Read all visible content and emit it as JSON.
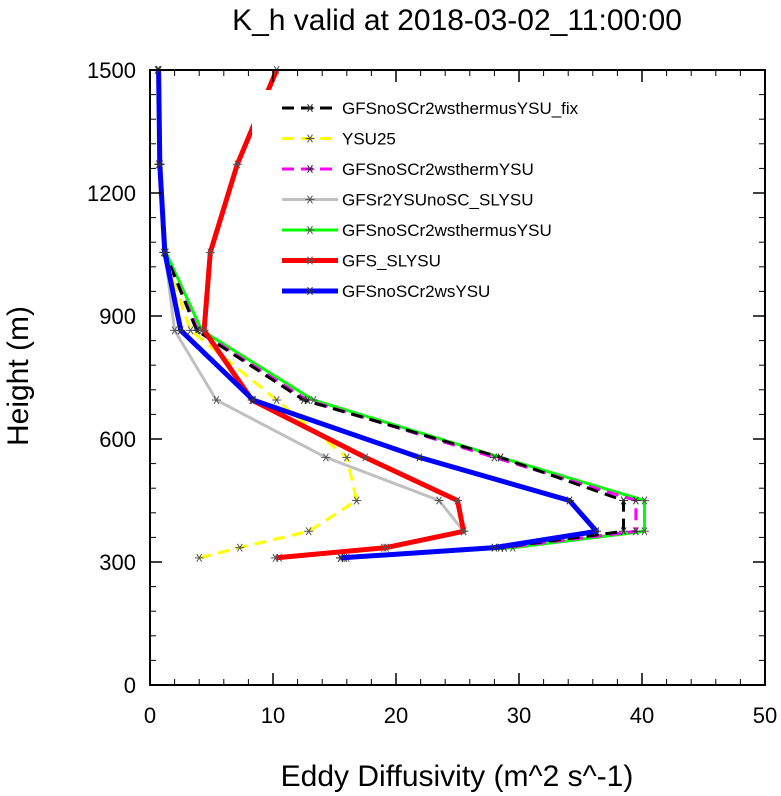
{
  "chart_data": {
    "type": "line",
    "title": "K_h valid at 2018-03-02_11:00:00",
    "xlabel": "Eddy Diffusivity (m^2 s^-1)",
    "ylabel": "Height (m)",
    "xlim": [
      0,
      50
    ],
    "ylim": [
      0,
      1500
    ],
    "xticks": [
      "0",
      "10",
      "20",
      "30",
      "40",
      "50"
    ],
    "yticks": [
      "0",
      "300",
      "600",
      "900",
      "1200",
      "1500"
    ],
    "grid": false,
    "legend_position": "top-right",
    "series": [
      {
        "name": "GFSnoSCr2wsthermusYSU_fix",
        "color": "#000000",
        "dash": true,
        "points": [
          [
            15.5,
            310
          ],
          [
            28.5,
            335
          ],
          [
            38.5,
            375
          ],
          [
            38.5,
            450
          ],
          [
            28.5,
            555
          ],
          [
            12.5,
            695
          ],
          [
            3.8,
            865
          ],
          [
            1.2,
            1055
          ],
          [
            0.8,
            1270
          ],
          [
            0.7,
            1500
          ]
        ]
      },
      {
        "name": "YSU25",
        "color": "#ffff00",
        "dash": true,
        "points": [
          [
            4.0,
            310
          ],
          [
            7.3,
            335
          ],
          [
            12.9,
            375
          ],
          [
            16.8,
            450
          ],
          [
            16.0,
            555
          ],
          [
            10.3,
            695
          ],
          [
            3.3,
            865
          ],
          [
            1.1,
            1055
          ],
          [
            0.7,
            1270
          ],
          [
            0.6,
            1500
          ]
        ]
      },
      {
        "name": "GFSnoSCr2wsthermYSU",
        "color": "#ff00ff",
        "dash": true,
        "points": [
          [
            15.8,
            310
          ],
          [
            28.8,
            335
          ],
          [
            39.5,
            375
          ],
          [
            39.5,
            450
          ],
          [
            28.0,
            555
          ],
          [
            12.8,
            695
          ],
          [
            3.9,
            865
          ],
          [
            1.2,
            1055
          ],
          [
            0.8,
            1270
          ],
          [
            0.7,
            1500
          ]
        ]
      },
      {
        "name": "GFSr2YSUnoSC_SLYSU",
        "color": "#c0c0c0",
        "dash": false,
        "points": [
          [
            10.5,
            310
          ],
          [
            19.0,
            335
          ],
          [
            25.5,
            375
          ],
          [
            23.5,
            450
          ],
          [
            14.3,
            555
          ],
          [
            5.4,
            695
          ],
          [
            2.0,
            865
          ],
          [
            1.2,
            1055
          ],
          [
            0.8,
            1270
          ],
          [
            0.7,
            1500
          ]
        ]
      },
      {
        "name": "GFSnoSCr2wsthermusYSU",
        "color": "#00ff00",
        "dash": false,
        "points": [
          [
            16.0,
            310
          ],
          [
            29.5,
            335
          ],
          [
            40.2,
            375
          ],
          [
            40.2,
            450
          ],
          [
            28.5,
            555
          ],
          [
            13.3,
            695
          ],
          [
            4.2,
            865
          ],
          [
            1.3,
            1055
          ],
          [
            0.8,
            1270
          ],
          [
            0.7,
            1500
          ]
        ]
      },
      {
        "name": "GFS_SLYSU",
        "color": "#ff0000",
        "dash": false,
        "points": [
          [
            10.2,
            310
          ],
          [
            19.2,
            335
          ],
          [
            25.5,
            375
          ],
          [
            25.0,
            450
          ],
          [
            17.5,
            555
          ],
          [
            8.3,
            695
          ],
          [
            4.4,
            865
          ],
          [
            4.9,
            1055
          ],
          [
            7.1,
            1270
          ],
          [
            10.3,
            1500
          ]
        ]
      },
      {
        "name": "GFSnoSCr2wsYSU",
        "color": "#0000ff",
        "dash": false,
        "points": [
          [
            15.5,
            310
          ],
          [
            28.0,
            335
          ],
          [
            36.3,
            375
          ],
          [
            34.1,
            450
          ],
          [
            21.9,
            555
          ],
          [
            8.4,
            695
          ],
          [
            2.5,
            865
          ],
          [
            1.2,
            1055
          ],
          [
            0.8,
            1270
          ],
          [
            0.7,
            1500
          ]
        ]
      }
    ]
  }
}
